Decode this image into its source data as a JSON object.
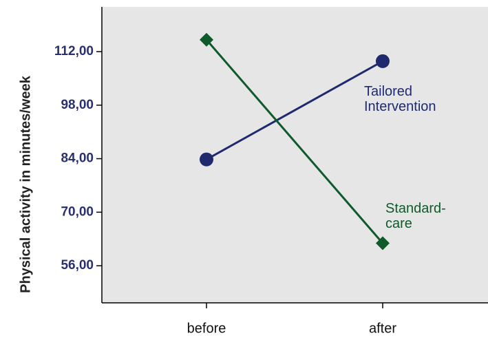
{
  "chart_data": {
    "type": "line",
    "y_label": "Physical activity in minutes/week",
    "categories": [
      "before",
      "after"
    ],
    "series": [
      {
        "name": "Tailored Intervention",
        "color": "#1f2a6e",
        "marker": "circle",
        "values": [
          83.8,
          109.5
        ]
      },
      {
        "name": "Standard-care",
        "color": "#0e5a2a",
        "marker": "diamond",
        "values": [
          115.1,
          61.9
        ]
      }
    ],
    "ylim": [
      46.3,
      123.7
    ],
    "yticks": [
      {
        "value": 56,
        "label": "56,00"
      },
      {
        "value": 70,
        "label": "70,00"
      },
      {
        "value": 84,
        "label": "84,00"
      },
      {
        "value": 98,
        "label": "98,00"
      },
      {
        "value": 112,
        "label": "112,00"
      }
    ]
  }
}
